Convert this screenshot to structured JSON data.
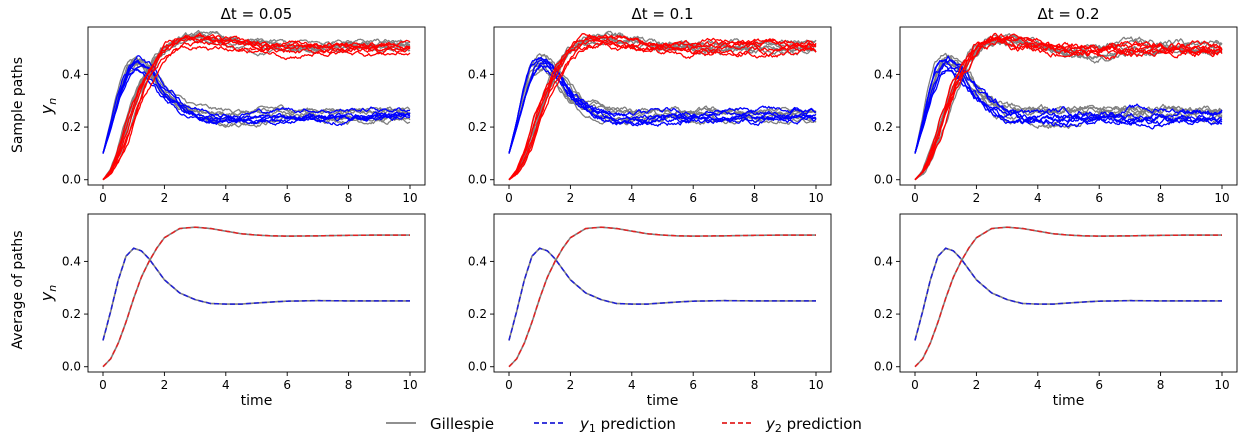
{
  "chart_data": {
    "type": "line",
    "column_titles": [
      "Δt = 0.05",
      "Δt = 0.1",
      "Δt = 0.2"
    ],
    "row_labels": [
      "Sample paths",
      "Average of paths"
    ],
    "ylabel": "y",
    "ylabel_subscript": "n",
    "xlabel": "time",
    "xlim": [
      0,
      10
    ],
    "ylim": [
      -0.02,
      0.58
    ],
    "xticks": [
      "0",
      "2",
      "4",
      "6",
      "8",
      "10"
    ],
    "yticks": [
      "0.0",
      "0.2",
      "0.4"
    ],
    "legend": {
      "placement": "bottom-center",
      "entries": [
        {
          "label": "Gillespie",
          "color": "#808080",
          "dash": "solid"
        },
        {
          "label": "y",
          "sub": "1",
          "suffix": " prediction",
          "color": "#1f1fd6",
          "dash": "dashed"
        },
        {
          "label": "y",
          "sub": "2",
          "suffix": " prediction",
          "color": "#e32222",
          "dash": "dashed"
        }
      ]
    },
    "colors": {
      "gillespie": "#808080",
      "y1_paths": "#0000ff",
      "y2_paths": "#ff0000",
      "y1_pred": "#1f1fd6",
      "y2_pred": "#e32222"
    },
    "mean_curves": {
      "x": [
        0,
        0.25,
        0.5,
        0.75,
        1.0,
        1.25,
        1.5,
        1.75,
        2.0,
        2.5,
        3.0,
        3.5,
        4.0,
        4.5,
        5.0,
        5.5,
        6.0,
        7.0,
        8.0,
        9.0,
        10.0
      ],
      "y1": [
        0.1,
        0.21,
        0.33,
        0.42,
        0.45,
        0.44,
        0.41,
        0.37,
        0.33,
        0.28,
        0.255,
        0.24,
        0.238,
        0.238,
        0.242,
        0.246,
        0.249,
        0.251,
        0.25,
        0.25,
        0.25
      ],
      "y2": [
        0.0,
        0.03,
        0.09,
        0.17,
        0.26,
        0.34,
        0.4,
        0.45,
        0.49,
        0.525,
        0.53,
        0.525,
        0.515,
        0.505,
        0.5,
        0.497,
        0.496,
        0.497,
        0.499,
        0.5,
        0.5
      ]
    },
    "sample_paths_per_group": 6
  }
}
